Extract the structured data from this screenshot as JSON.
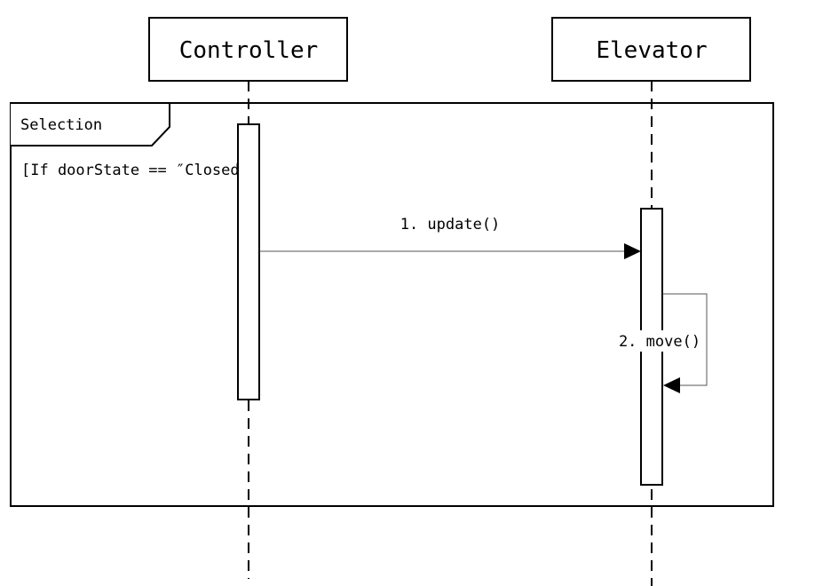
{
  "participants": [
    {
      "id": "controller",
      "label": "Controller"
    },
    {
      "id": "elevator",
      "label": "Elevator"
    }
  ],
  "fragment": {
    "kind_label": "Selection",
    "guard": "[If doorState == ″Closed″]"
  },
  "messages": [
    {
      "label": "1. update()",
      "from": "controller",
      "to": "elevator"
    },
    {
      "label": "2. move()",
      "from": "elevator",
      "to": "elevator"
    }
  ]
}
